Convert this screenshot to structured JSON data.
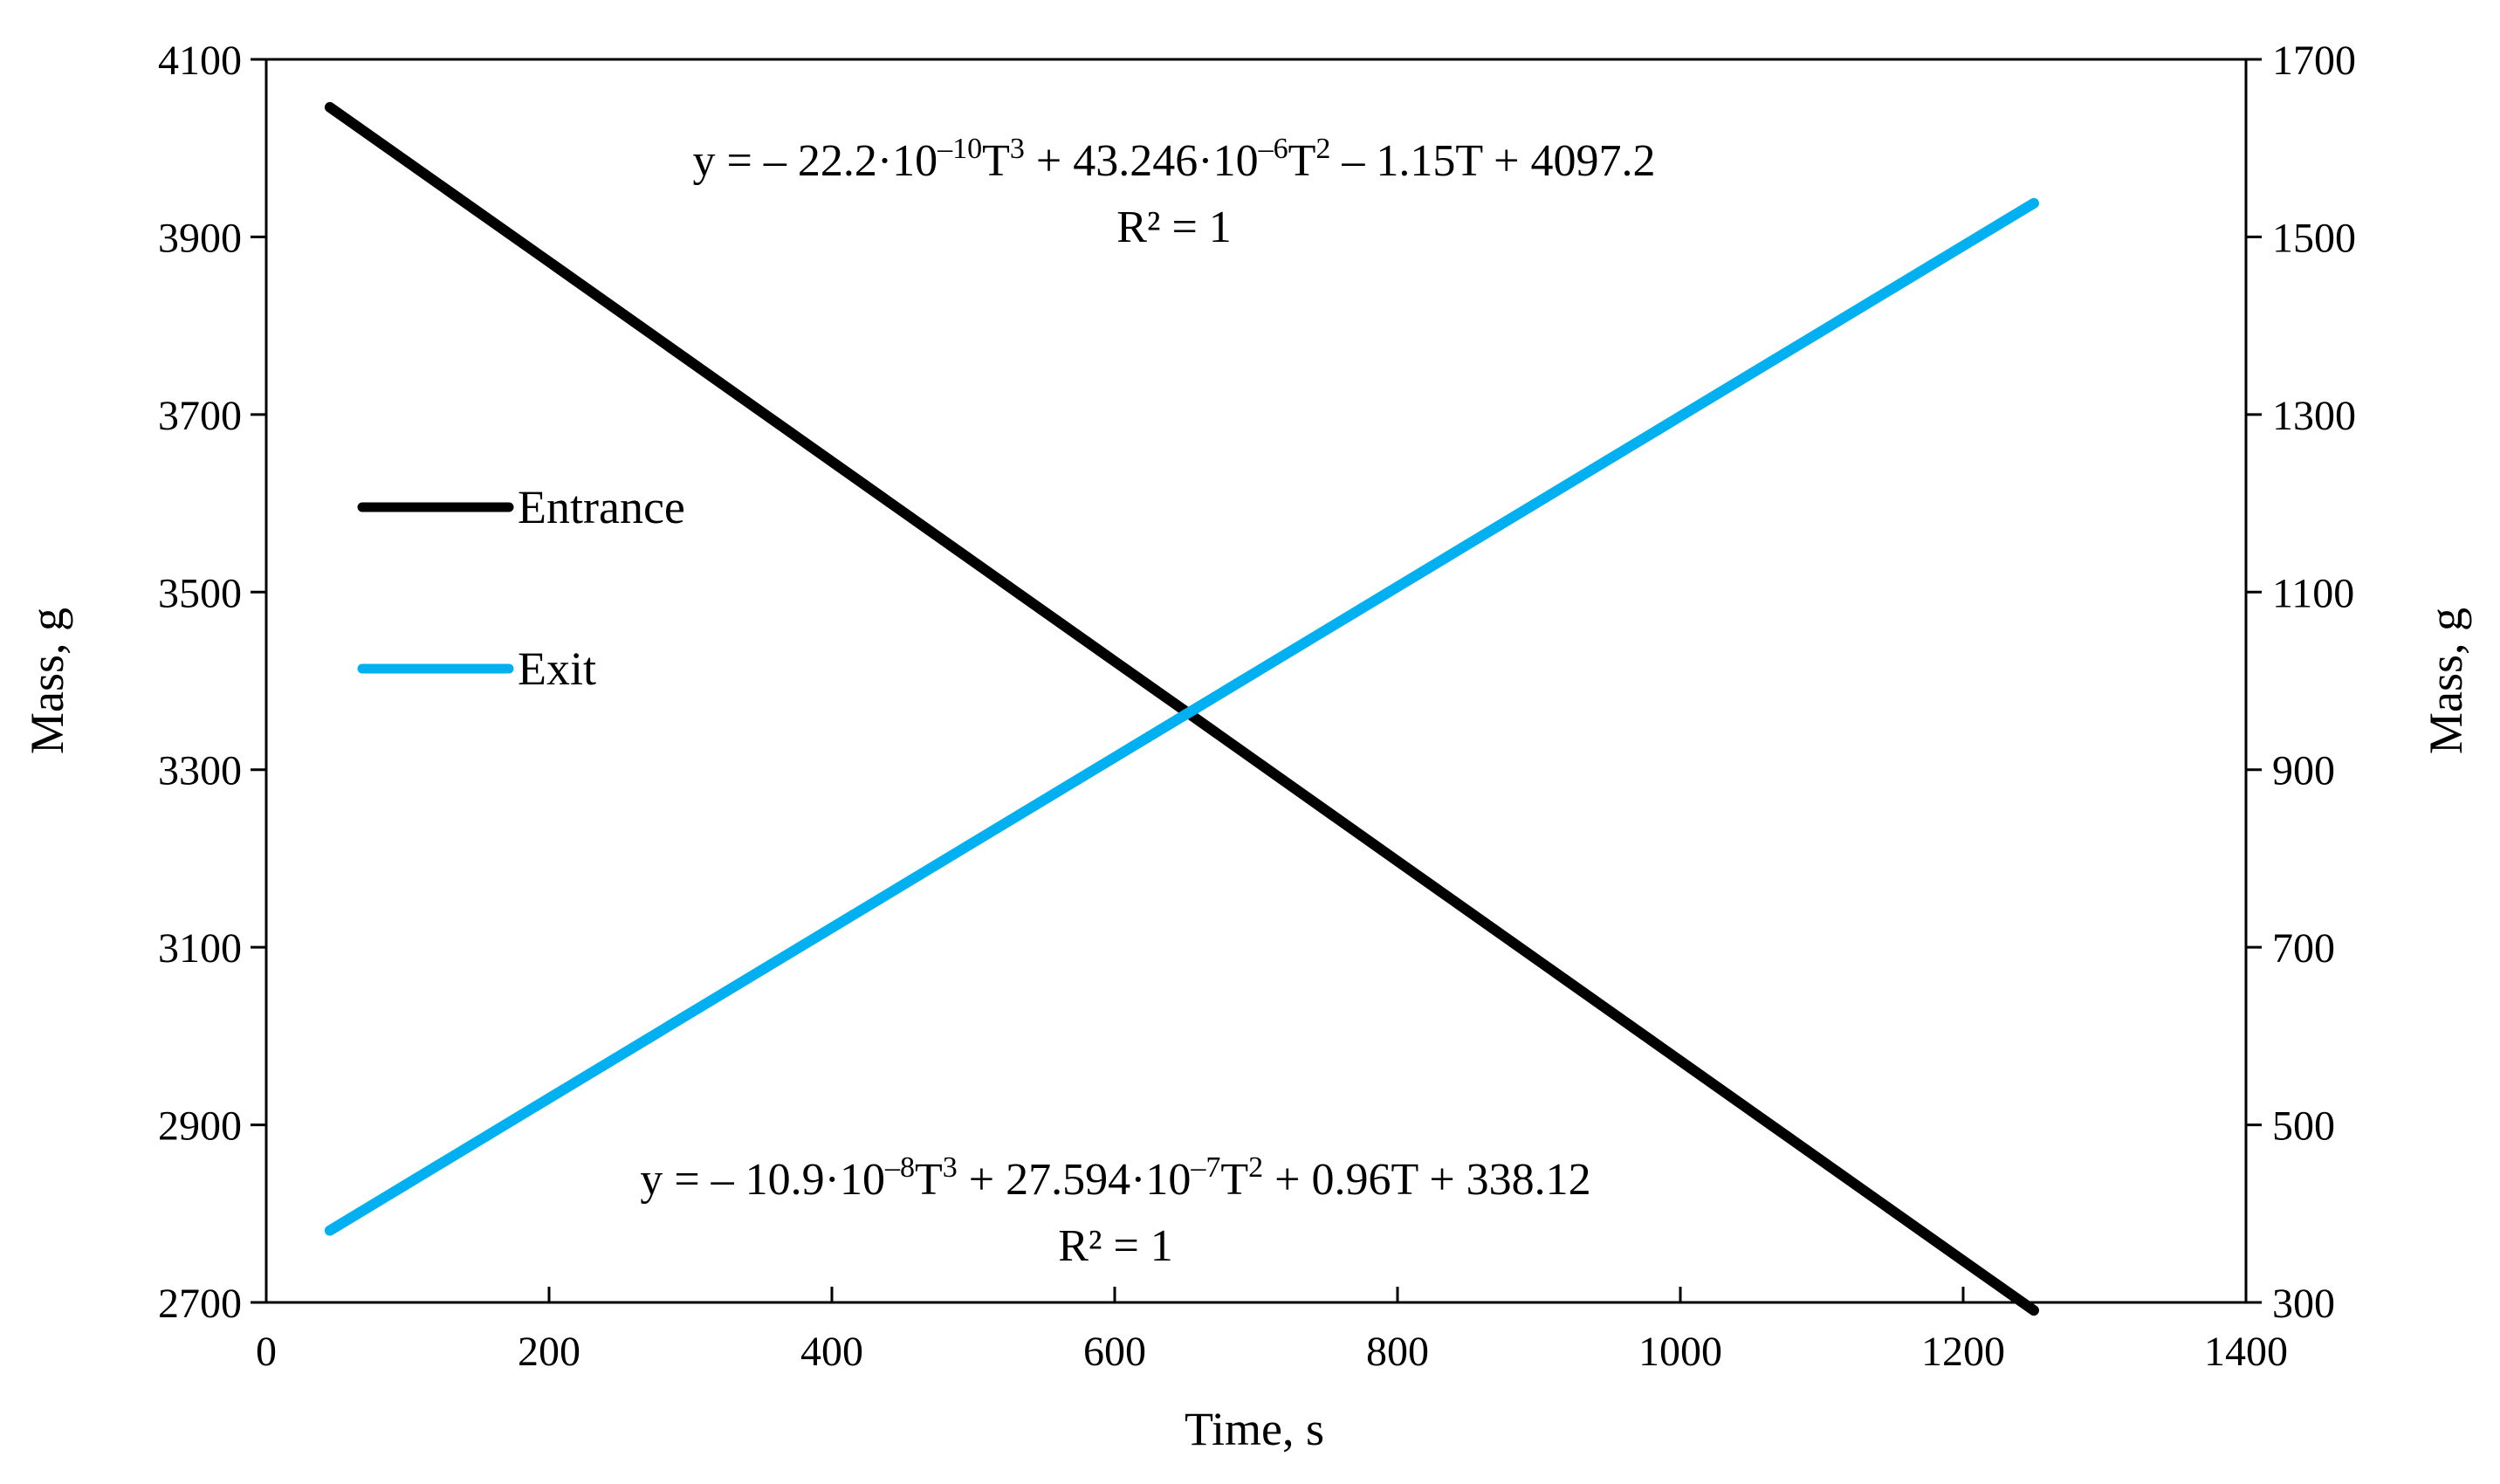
{
  "chart_data": {
    "type": "line",
    "title": "",
    "xlabel": "Time, s",
    "ylabel_left": "Mass, g",
    "ylabel_right": "Mass, g",
    "xlim": [
      0,
      1400
    ],
    "ylim_left": [
      2700,
      4100
    ],
    "ylim_right": [
      300,
      1700
    ],
    "x_ticks": [
      "0",
      "200",
      "400",
      "600",
      "800",
      "1000",
      "1200",
      "1400"
    ],
    "y_left_ticks": [
      "2700",
      "2900",
      "3100",
      "3300",
      "3500",
      "3700",
      "3900",
      "4100"
    ],
    "y_right_ticks": [
      "300",
      "500",
      "700",
      "900",
      "1100",
      "1300",
      "1500",
      "1700"
    ],
    "grid": false,
    "legend_position": "left-middle",
    "series": [
      {
        "name": "Entrance",
        "axis": "left",
        "color": "#000000",
        "x": [
          45,
          200,
          400,
          600,
          650,
          800,
          1000,
          1200,
          1250
        ],
        "y": [
          4046,
          3872,
          3647,
          3422,
          3366,
          3197,
          2972,
          2747,
          2691
        ],
        "equation": [
          "y = – 22.2·10",
          "–10",
          "T",
          "3",
          " + 43.246·10",
          "–6",
          "T",
          "2",
          " – 1.15T + 4097.2"
        ],
        "r2": "R² = 1"
      },
      {
        "name": "Exit",
        "axis": "right",
        "color": "#00b0f0",
        "x": [
          45,
          200,
          400,
          600,
          650,
          800,
          1000,
          1200,
          1250
        ],
        "y": [
          381,
          530,
          722,
          914,
          962,
          1106,
          1298,
          1490,
          1538
        ],
        "equation": [
          "y = – 10.9·10",
          "–8",
          "T",
          "3",
          " + 27.594·10",
          "–7",
          "T",
          "2",
          " + 0.96T + 338.12"
        ],
        "r2": "R² = 1"
      }
    ]
  }
}
